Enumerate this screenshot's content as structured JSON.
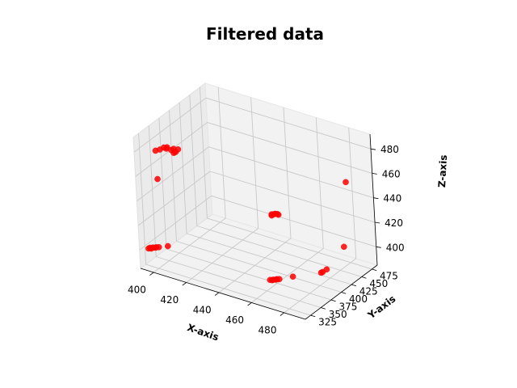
{
  "chart_data": {
    "type": "scatter",
    "title": "Filtered data",
    "xlabel": "X-axis",
    "ylabel": "Y-axis",
    "zlabel": "Z-axis",
    "xlim": [
      392,
      493
    ],
    "ylim": [
      312,
      488
    ],
    "zlim": [
      385,
      492
    ],
    "xticks": [
      "400",
      "420",
      "440",
      "460",
      "480"
    ],
    "yticks": [
      "325",
      "350",
      "375",
      "400",
      "425",
      "450",
      "475"
    ],
    "zticks": [
      "400",
      "420",
      "440",
      "460",
      "480"
    ],
    "grid": true,
    "marker_color": "#ff0000",
    "series": [
      {
        "points": [
          {
            "x": 395,
            "y": 322,
            "z": 400
          },
          {
            "x": 396,
            "y": 322,
            "z": 401
          },
          {
            "x": 397,
            "y": 321,
            "z": 401
          },
          {
            "x": 398,
            "y": 322,
            "z": 402
          },
          {
            "x": 399,
            "y": 323,
            "z": 402
          },
          {
            "x": 400,
            "y": 322,
            "z": 403
          },
          {
            "x": 401,
            "y": 324,
            "z": 403
          },
          {
            "x": 405,
            "y": 330,
            "z": 404
          },
          {
            "x": 399,
            "y": 336,
            "z": 478
          },
          {
            "x": 401,
            "y": 339,
            "z": 479
          },
          {
            "x": 403,
            "y": 341,
            "z": 481
          },
          {
            "x": 404,
            "y": 343,
            "z": 480
          },
          {
            "x": 405,
            "y": 341,
            "z": 482
          },
          {
            "x": 407,
            "y": 343,
            "z": 480
          },
          {
            "x": 408,
            "y": 345,
            "z": 481
          },
          {
            "x": 409,
            "y": 341,
            "z": 479
          },
          {
            "x": 410,
            "y": 342,
            "z": 480
          },
          {
            "x": 411,
            "y": 344,
            "z": 482
          },
          {
            "x": 403,
            "y": 322,
            "z": 460
          },
          {
            "x": 466,
            "y": 336,
            "z": 400
          },
          {
            "x": 467,
            "y": 337,
            "z": 400
          },
          {
            "x": 468,
            "y": 336,
            "z": 401
          },
          {
            "x": 469,
            "y": 338,
            "z": 401
          },
          {
            "x": 470,
            "y": 337,
            "z": 402
          },
          {
            "x": 471,
            "y": 339,
            "z": 402
          },
          {
            "x": 474,
            "y": 360,
            "z": 400
          },
          {
            "x": 484,
            "y": 389,
            "z": 400
          },
          {
            "x": 485,
            "y": 389,
            "z": 401
          },
          {
            "x": 486,
            "y": 395,
            "z": 402
          },
          {
            "x": 431,
            "y": 480,
            "z": 402
          },
          {
            "x": 431,
            "y": 480,
            "z": 403
          },
          {
            "x": 432,
            "y": 482,
            "z": 403
          },
          {
            "x": 433,
            "y": 481,
            "z": 404
          },
          {
            "x": 434,
            "y": 482,
            "z": 404
          },
          {
            "x": 435,
            "y": 481,
            "z": 404
          },
          {
            "x": 479,
            "y": 465,
            "z": 400
          },
          {
            "x": 477,
            "y": 485,
            "z": 447
          }
        ]
      }
    ]
  }
}
